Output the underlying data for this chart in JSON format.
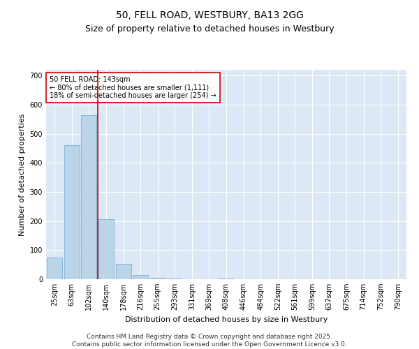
{
  "title": "50, FELL ROAD, WESTBURY, BA13 2GG",
  "subtitle": "Size of property relative to detached houses in Westbury",
  "xlabel": "Distribution of detached houses by size in Westbury",
  "ylabel": "Number of detached properties",
  "categories": [
    "25sqm",
    "63sqm",
    "102sqm",
    "140sqm",
    "178sqm",
    "216sqm",
    "255sqm",
    "293sqm",
    "331sqm",
    "369sqm",
    "408sqm",
    "446sqm",
    "484sqm",
    "522sqm",
    "561sqm",
    "599sqm",
    "637sqm",
    "675sqm",
    "714sqm",
    "752sqm",
    "790sqm"
  ],
  "values": [
    75,
    460,
    565,
    207,
    52,
    15,
    5,
    2,
    0,
    0,
    3,
    0,
    0,
    0,
    0,
    0,
    0,
    0,
    0,
    0,
    0
  ],
  "bar_color": "#bad4e8",
  "bar_edge_color": "#7aafd4",
  "vline_color": "#cc0000",
  "vline_x_index": 2.5,
  "annotation_text": "50 FELL ROAD: 143sqm\n← 80% of detached houses are smaller (1,111)\n18% of semi-detached houses are larger (254) →",
  "annotation_box_facecolor": "#ffffff",
  "annotation_box_edgecolor": "#cc0000",
  "ylim": [
    0,
    720
  ],
  "yticks": [
    0,
    100,
    200,
    300,
    400,
    500,
    600,
    700
  ],
  "plot_bgcolor": "#dce8f5",
  "fig_bgcolor": "#ffffff",
  "grid_color": "#ffffff",
  "footer_text": "Contains HM Land Registry data © Crown copyright and database right 2025.\nContains public sector information licensed under the Open Government Licence v3.0.",
  "title_fontsize": 10,
  "subtitle_fontsize": 9,
  "axis_label_fontsize": 8,
  "tick_fontsize": 7,
  "annot_fontsize": 7,
  "footer_fontsize": 6.5
}
